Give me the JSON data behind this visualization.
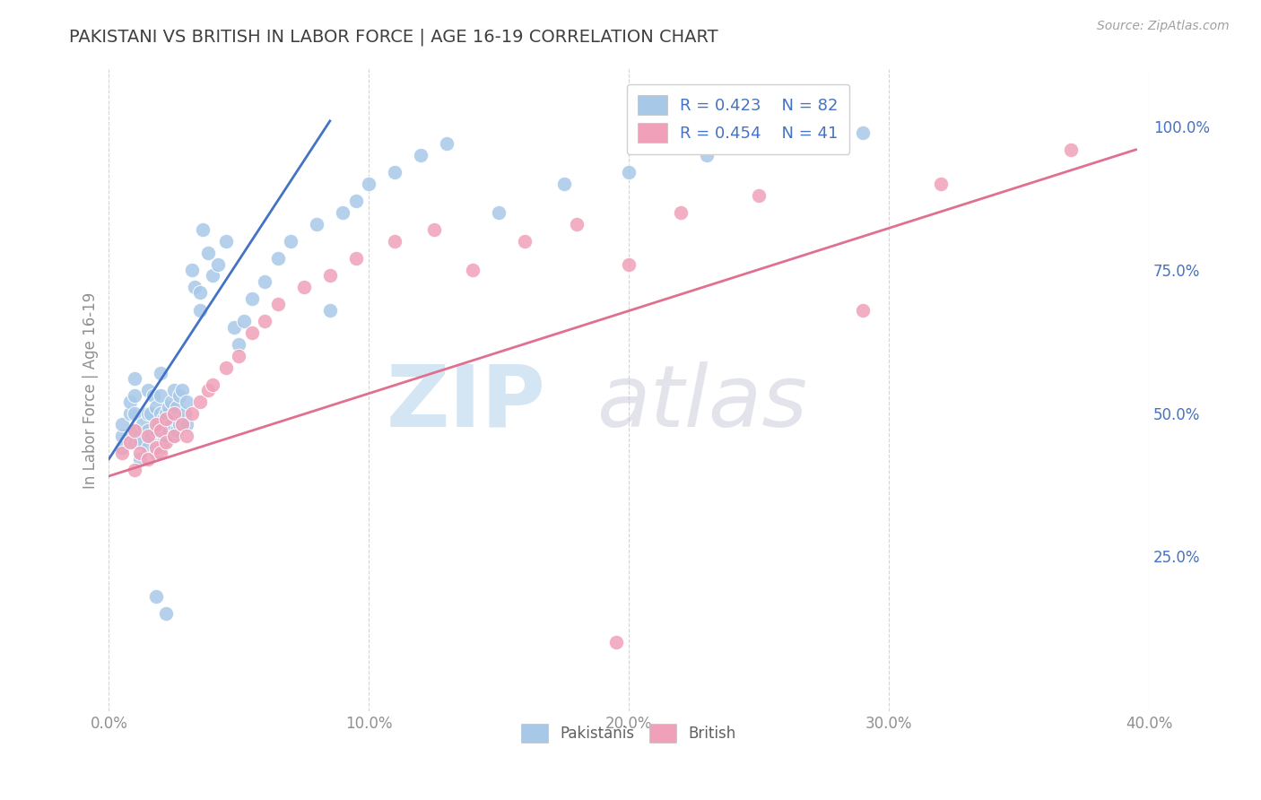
{
  "title": "PAKISTANI VS BRITISH IN LABOR FORCE | AGE 16-19 CORRELATION CHART",
  "source": "Source: ZipAtlas.com",
  "ylabel": "In Labor Force | Age 16-19",
  "xlim": [
    0.0,
    0.4
  ],
  "ylim": [
    -0.02,
    1.1
  ],
  "xticks": [
    0.0,
    0.1,
    0.2,
    0.3,
    0.4
  ],
  "xticklabels": [
    "0.0%",
    "10.0%",
    "20.0%",
    "30.0%",
    "40.0%"
  ],
  "yticks_right": [
    0.25,
    0.5,
    0.75,
    1.0
  ],
  "ytick_right_labels": [
    "25.0%",
    "50.0%",
    "75.0%",
    "100.0%"
  ],
  "legend_blue_r": "R = 0.423",
  "legend_blue_n": "N = 82",
  "legend_pink_r": "R = 0.454",
  "legend_pink_n": "N = 41",
  "blue_color": "#A8C8E8",
  "pink_color": "#F0A0B8",
  "blue_line_color": "#4472C4",
  "pink_line_color": "#E07090",
  "title_color": "#404040",
  "axis_color": "#909090",
  "grid_color": "#D0D0D0",
  "blue_scatter_x": [
    0.005,
    0.005,
    0.005,
    0.008,
    0.008,
    0.01,
    0.01,
    0.01,
    0.01,
    0.01,
    0.012,
    0.012,
    0.013,
    0.015,
    0.015,
    0.015,
    0.015,
    0.016,
    0.016,
    0.017,
    0.018,
    0.018,
    0.018,
    0.019,
    0.019,
    0.02,
    0.02,
    0.02,
    0.02,
    0.02,
    0.021,
    0.021,
    0.022,
    0.022,
    0.023,
    0.023,
    0.024,
    0.024,
    0.025,
    0.025,
    0.025,
    0.026,
    0.026,
    0.027,
    0.027,
    0.028,
    0.028,
    0.029,
    0.03,
    0.03,
    0.032,
    0.033,
    0.035,
    0.035,
    0.036,
    0.038,
    0.04,
    0.042,
    0.045,
    0.048,
    0.05,
    0.052,
    0.055,
    0.06,
    0.065,
    0.07,
    0.08,
    0.085,
    0.09,
    0.095,
    0.1,
    0.11,
    0.12,
    0.13,
    0.15,
    0.175,
    0.2,
    0.23,
    0.26,
    0.29,
    0.018,
    0.022
  ],
  "blue_scatter_y": [
    0.46,
    0.48,
    0.44,
    0.5,
    0.52,
    0.45,
    0.47,
    0.5,
    0.53,
    0.56,
    0.42,
    0.45,
    0.48,
    0.44,
    0.47,
    0.5,
    0.54,
    0.46,
    0.5,
    0.53,
    0.43,
    0.47,
    0.51,
    0.44,
    0.48,
    0.44,
    0.47,
    0.5,
    0.53,
    0.57,
    0.45,
    0.49,
    0.46,
    0.5,
    0.47,
    0.51,
    0.48,
    0.52,
    0.46,
    0.5,
    0.54,
    0.47,
    0.51,
    0.48,
    0.53,
    0.49,
    0.54,
    0.5,
    0.48,
    0.52,
    0.75,
    0.72,
    0.68,
    0.71,
    0.82,
    0.78,
    0.74,
    0.76,
    0.8,
    0.65,
    0.62,
    0.66,
    0.7,
    0.73,
    0.77,
    0.8,
    0.83,
    0.68,
    0.85,
    0.87,
    0.9,
    0.92,
    0.95,
    0.97,
    0.85,
    0.9,
    0.92,
    0.95,
    0.98,
    0.99,
    0.18,
    0.15
  ],
  "pink_scatter_x": [
    0.005,
    0.008,
    0.01,
    0.01,
    0.012,
    0.015,
    0.015,
    0.018,
    0.018,
    0.02,
    0.02,
    0.022,
    0.022,
    0.025,
    0.025,
    0.028,
    0.03,
    0.032,
    0.035,
    0.038,
    0.04,
    0.045,
    0.05,
    0.055,
    0.06,
    0.065,
    0.075,
    0.085,
    0.095,
    0.11,
    0.125,
    0.14,
    0.16,
    0.18,
    0.2,
    0.22,
    0.25,
    0.29,
    0.32,
    0.37,
    0.195
  ],
  "pink_scatter_y": [
    0.43,
    0.45,
    0.4,
    0.47,
    0.43,
    0.42,
    0.46,
    0.44,
    0.48,
    0.43,
    0.47,
    0.45,
    0.49,
    0.46,
    0.5,
    0.48,
    0.46,
    0.5,
    0.52,
    0.54,
    0.55,
    0.58,
    0.6,
    0.64,
    0.66,
    0.69,
    0.72,
    0.74,
    0.77,
    0.8,
    0.82,
    0.75,
    0.8,
    0.83,
    0.76,
    0.85,
    0.88,
    0.68,
    0.9,
    0.96,
    0.1
  ],
  "blue_line_x": [
    0.0,
    0.085
  ],
  "blue_line_y": [
    0.42,
    1.01
  ],
  "pink_line_x": [
    0.0,
    0.395
  ],
  "pink_line_y": [
    0.39,
    0.96
  ]
}
